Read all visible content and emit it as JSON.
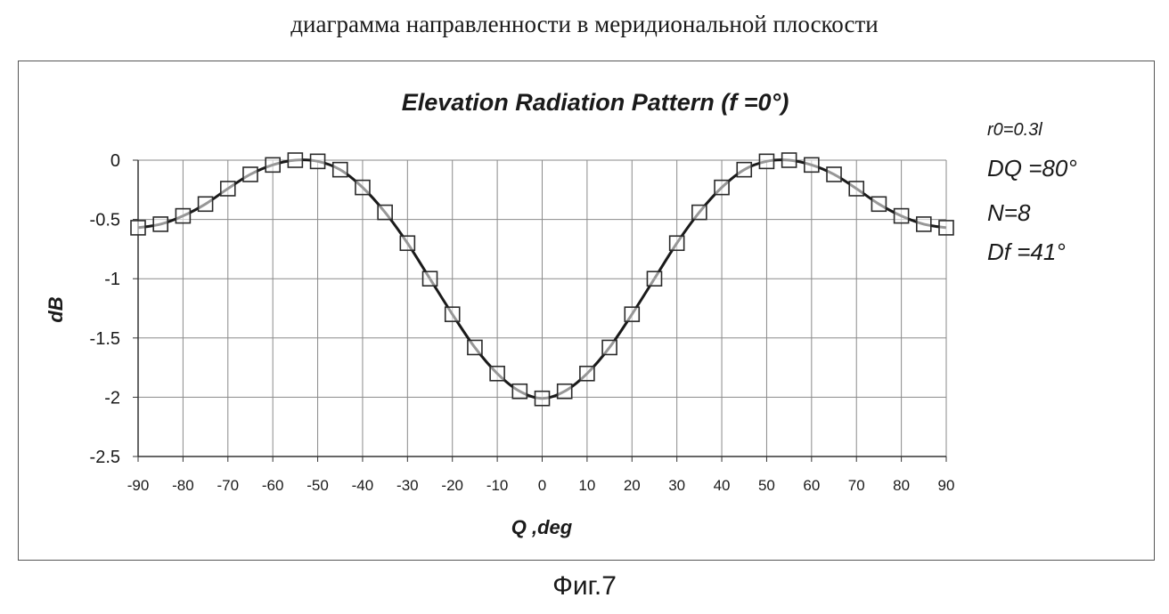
{
  "page": {
    "top_caption": "диаграмма направленности в меридиональной плоскости",
    "figure_caption": "Фиг.7"
  },
  "annotations": [
    "r0=0.3l",
    "DQ =80°",
    "N=8",
    "Df  =41°"
  ],
  "chart_data": {
    "type": "line",
    "title": "Elevation Radiation Pattern (f  =0°)",
    "xlabel": "Q ,deg",
    "ylabel": "dB",
    "xlim": [
      -90,
      90
    ],
    "ylim": [
      -2.5,
      0
    ],
    "x_ticks": [
      -90,
      -80,
      -70,
      -60,
      -50,
      -40,
      -30,
      -20,
      -10,
      0,
      10,
      20,
      30,
      40,
      50,
      60,
      70,
      80,
      90
    ],
    "y_ticks": [
      0,
      -0.5,
      -1,
      -1.5,
      -2,
      -2.5
    ],
    "x_tick_labels": [
      "-90",
      "-80",
      "-70",
      "-60",
      "-50",
      "-40",
      "-30",
      "-20",
      "-10",
      "0",
      "10",
      "20",
      "30",
      "40",
      "50",
      "60",
      "70",
      "80",
      "90"
    ],
    "y_tick_labels": [
      "0",
      "-0.5",
      "-1",
      "-1.5",
      "-2",
      "-2.5"
    ],
    "grid": true,
    "series": [
      {
        "x": [
          -90,
          -85,
          -80,
          -75,
          -70,
          -65,
          -60,
          -55,
          -50,
          -45,
          -40,
          -35,
          -30,
          -25,
          -20,
          -15,
          -10,
          -5,
          0,
          5,
          10,
          15,
          20,
          25,
          30,
          35,
          40,
          45,
          50,
          55,
          60,
          65,
          70,
          75,
          80,
          85,
          90
        ],
        "y": [
          -0.57,
          -0.54,
          -0.47,
          -0.37,
          -0.24,
          -0.12,
          -0.04,
          0.0,
          -0.01,
          -0.08,
          -0.23,
          -0.44,
          -0.7,
          -1.0,
          -1.3,
          -1.58,
          -1.8,
          -1.95,
          -2.01,
          -1.95,
          -1.8,
          -1.58,
          -1.3,
          -1.0,
          -0.7,
          -0.44,
          -0.23,
          -0.08,
          -0.01,
          0.0,
          -0.04,
          -0.12,
          -0.24,
          -0.37,
          -0.47,
          -0.54,
          -0.57
        ],
        "marker": "square",
        "color": "#1a1a1a"
      }
    ]
  }
}
